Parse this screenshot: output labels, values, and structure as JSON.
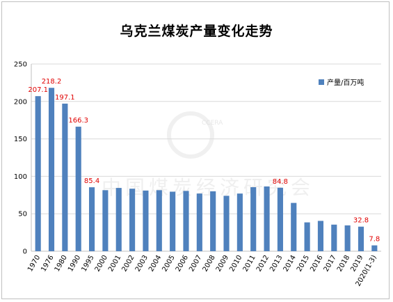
{
  "chart_data": {
    "type": "bar",
    "title": "乌克兰煤炭产量变化走势",
    "legend_position": "top-right",
    "grid": true,
    "ylim": [
      0,
      250
    ],
    "yticks": [
      0,
      50,
      100,
      150,
      200,
      250
    ],
    "bar_color": "#4f81bd",
    "label_color": "#e00000",
    "categories": [
      "1970",
      "1976",
      "1980",
      "1990",
      "1995",
      "2000",
      "2001",
      "2002",
      "2003",
      "2004",
      "2005",
      "2006",
      "2007",
      "2008",
      "2009",
      "2010",
      "2011",
      "2012",
      "2013",
      "2014",
      "2015",
      "2016",
      "2017",
      "2018",
      "2019",
      "2020(1-3)"
    ],
    "series": [
      {
        "name": "产量/百万吨",
        "values": [
          207.1,
          218.2,
          197.1,
          166.3,
          85.4,
          81.5,
          84.5,
          83.5,
          81.0,
          81.5,
          79.5,
          80.5,
          77.0,
          80.0,
          74.0,
          77.0,
          85.5,
          86.5,
          84.8,
          64.5,
          38.5,
          40.5,
          35.5,
          34.5,
          32.8,
          7.8
        ],
        "labels": [
          "207.1",
          "218.2",
          "197.1",
          "166.3",
          "85.4",
          "",
          "",
          "",
          "",
          "",
          "",
          "",
          "",
          "",
          "",
          "",
          "",
          "",
          "84.8",
          "",
          "",
          "",
          "",
          "",
          "32.8",
          "7.8"
        ]
      }
    ]
  },
  "watermark": {
    "text": "中国煤炭经济研究会",
    "logo_text": "CCERA"
  }
}
